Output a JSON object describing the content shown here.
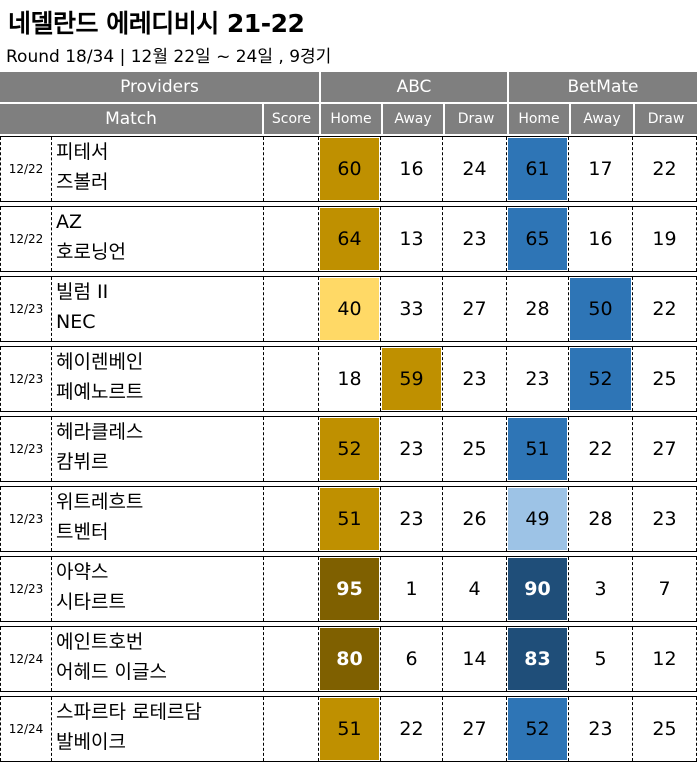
{
  "title": "네델란드 에레디비시 21-22",
  "subtitle": "Round 18/34 | 12월 22일 ~ 24일 , 9경기",
  "header": {
    "providers": "Providers",
    "match": "Match",
    "score": "Score",
    "abc": "ABC",
    "betmate": "BetMate",
    "home": "Home",
    "away": "Away",
    "draw": "Draw"
  },
  "colors": {
    "header_bg": "#7f7f7f",
    "gold": "#bf9000",
    "light_gold": "#ffd966",
    "dark_gold": "#7f6000",
    "blue": "#2e75b6",
    "light_blue": "#9dc3e6",
    "dark_blue": "#1f4e79"
  },
  "matches": [
    {
      "date": "12/22",
      "home": "피테서",
      "away": "즈볼러",
      "score": "",
      "abc": [
        "60",
        "16",
        "24"
      ],
      "bm": [
        "61",
        "17",
        "22"
      ]
    },
    {
      "date": "12/22",
      "home": "AZ",
      "away": "호로닝언",
      "score": "",
      "abc": [
        "64",
        "13",
        "23"
      ],
      "bm": [
        "65",
        "16",
        "19"
      ]
    },
    {
      "date": "12/23",
      "home": "빌럼 II",
      "away": "NEC",
      "score": "",
      "abc": [
        "40",
        "33",
        "27"
      ],
      "bm": [
        "28",
        "50",
        "22"
      ]
    },
    {
      "date": "12/23",
      "home": "헤이렌베인",
      "away": "페예노르트",
      "score": "",
      "abc": [
        "18",
        "59",
        "23"
      ],
      "bm": [
        "23",
        "52",
        "25"
      ]
    },
    {
      "date": "12/23",
      "home": "헤라클레스",
      "away": "캄뷔르",
      "score": "",
      "abc": [
        "52",
        "23",
        "25"
      ],
      "bm": [
        "51",
        "22",
        "27"
      ]
    },
    {
      "date": "12/23",
      "home": "위트레흐트",
      "away": "트벤터",
      "score": "",
      "abc": [
        "51",
        "23",
        "26"
      ],
      "bm": [
        "49",
        "28",
        "23"
      ]
    },
    {
      "date": "12/23",
      "home": "아약스",
      "away": "시타르트",
      "score": "",
      "abc": [
        "95",
        "1",
        "4"
      ],
      "bm": [
        "90",
        "3",
        "7"
      ]
    },
    {
      "date": "12/24",
      "home": "에인트호번",
      "away": "어헤드 이글스",
      "score": "",
      "abc": [
        "80",
        "6",
        "14"
      ],
      "bm": [
        "83",
        "5",
        "12"
      ]
    },
    {
      "date": "12/24",
      "home": "스파르타 로테르담",
      "away": "발베이크",
      "score": "",
      "abc": [
        "51",
        "22",
        "27"
      ],
      "bm": [
        "52",
        "23",
        "25"
      ]
    }
  ]
}
